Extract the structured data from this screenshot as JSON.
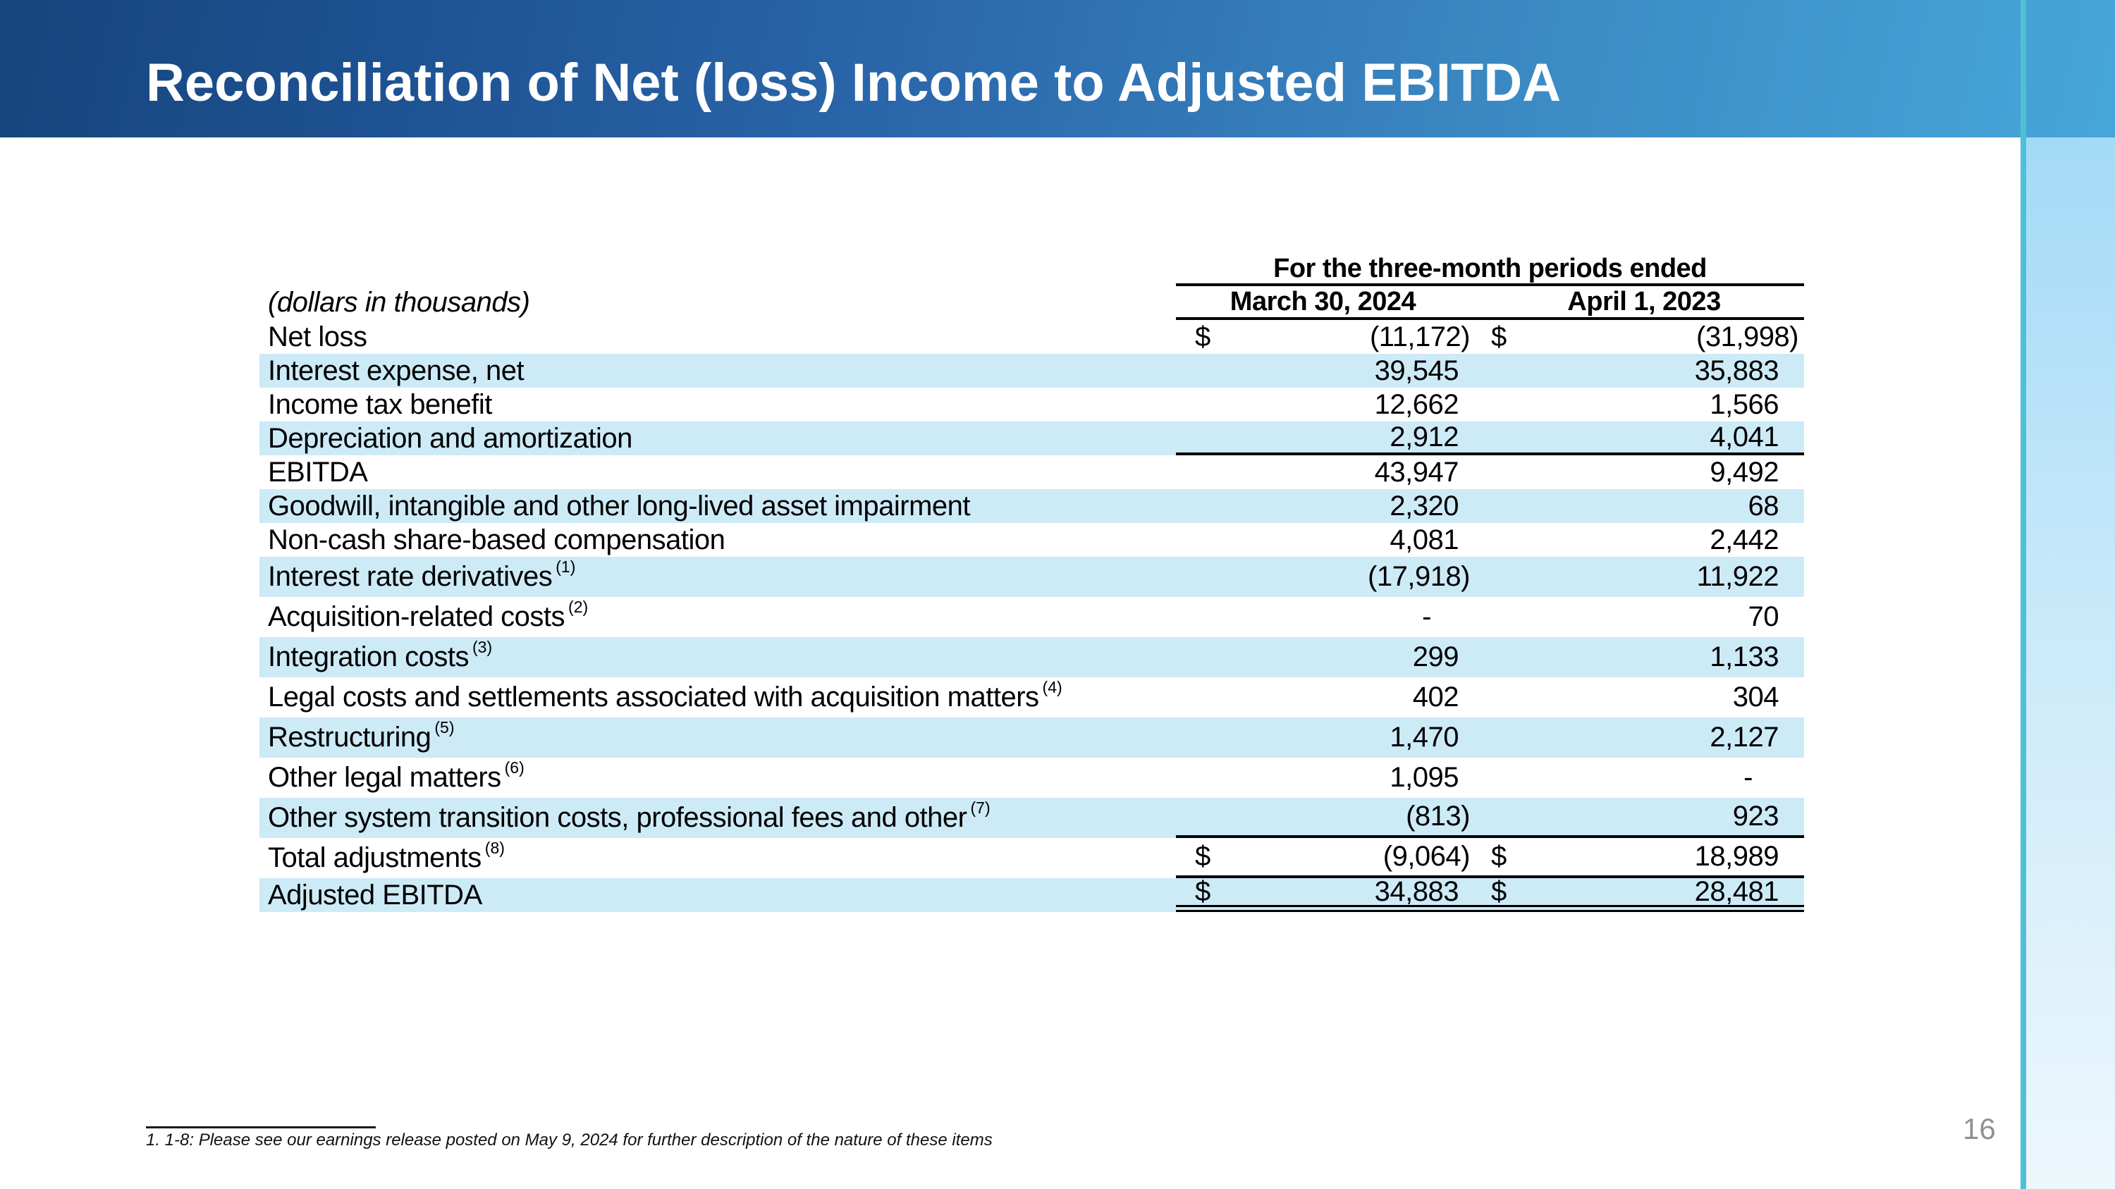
{
  "slide": {
    "title": "Reconciliation of Net (loss) Income to Adjusted EBITDA",
    "page_number": "16",
    "footnote": "1. 1-8: Please see our earnings release posted on May 9, 2024 for further description of the nature of these items"
  },
  "table": {
    "units_label": "(dollars in thousands)",
    "period_header": "For the three-month periods ended",
    "columns": [
      "March 30, 2024",
      "April 1, 2023"
    ],
    "rows": [
      {
        "label": "Net loss",
        "sup": "",
        "dollar": true,
        "values": [
          "(11,172)",
          "(31,998)"
        ],
        "shaded": false,
        "rule_below": false,
        "double_below": false
      },
      {
        "label": "Interest expense, net",
        "sup": "",
        "dollar": false,
        "values": [
          "39,545",
          "35,883"
        ],
        "shaded": true,
        "rule_below": false,
        "double_below": false
      },
      {
        "label": "Income tax benefit",
        "sup": "",
        "dollar": false,
        "values": [
          "12,662",
          "1,566"
        ],
        "shaded": false,
        "rule_below": false,
        "double_below": false
      },
      {
        "label": "Depreciation and amortization",
        "sup": "",
        "dollar": false,
        "values": [
          "2,912",
          "4,041"
        ],
        "shaded": true,
        "rule_below": true,
        "double_below": false
      },
      {
        "label": "EBITDA",
        "sup": "",
        "dollar": false,
        "values": [
          "43,947",
          "9,492"
        ],
        "shaded": false,
        "rule_below": false,
        "double_below": false
      },
      {
        "label": "Goodwill, intangible and other long-lived asset impairment",
        "sup": "",
        "dollar": false,
        "values": [
          "2,320",
          "68"
        ],
        "shaded": true,
        "rule_below": false,
        "double_below": false
      },
      {
        "label": "Non-cash share-based compensation",
        "sup": "",
        "dollar": false,
        "values": [
          "4,081",
          "2,442"
        ],
        "shaded": false,
        "rule_below": false,
        "double_below": false
      },
      {
        "label": "Interest rate derivatives",
        "sup": "(1)",
        "dollar": false,
        "values": [
          "(17,918)",
          "11,922"
        ],
        "shaded": true,
        "rule_below": false,
        "double_below": false
      },
      {
        "label": "Acquisition-related costs",
        "sup": "(2)",
        "dollar": false,
        "values": [
          "-",
          "70"
        ],
        "shaded": false,
        "rule_below": false,
        "double_below": false
      },
      {
        "label": "Integration costs",
        "sup": "(3)",
        "dollar": false,
        "values": [
          "299",
          "1,133"
        ],
        "shaded": true,
        "rule_below": false,
        "double_below": false
      },
      {
        "label": "Legal costs and settlements associated with acquisition matters",
        "sup": "(4)",
        "dollar": false,
        "values": [
          "402",
          "304"
        ],
        "shaded": false,
        "rule_below": false,
        "double_below": false
      },
      {
        "label": "Restructuring",
        "sup": "(5)",
        "dollar": false,
        "values": [
          "1,470",
          "2,127"
        ],
        "shaded": true,
        "rule_below": false,
        "double_below": false
      },
      {
        "label": "Other legal matters",
        "sup": "(6)",
        "dollar": false,
        "values": [
          "1,095",
          "-"
        ],
        "shaded": false,
        "rule_below": false,
        "double_below": false
      },
      {
        "label": "Other system transition costs, professional fees and other",
        "sup": "(7)",
        "dollar": false,
        "values": [
          "(813)",
          "923"
        ],
        "shaded": true,
        "rule_below": true,
        "double_below": false
      },
      {
        "label": "Total adjustments",
        "sup": "(8)",
        "dollar": true,
        "values": [
          "(9,064)",
          "18,989"
        ],
        "shaded": false,
        "rule_below": true,
        "double_below": false
      },
      {
        "label": "Adjusted EBITDA",
        "sup": "",
        "dollar": true,
        "values": [
          "34,883",
          "28,481"
        ],
        "shaded": true,
        "rule_below": false,
        "double_below": true
      }
    ]
  },
  "colors": {
    "banner_gradient_left": "#16457c",
    "banner_gradient_right": "#47a6da",
    "row_stripe": "#cdeaf7",
    "side_accent_teal": "#4ec0d6",
    "side_panel_top": "#a3daf6",
    "side_panel_bottom": "#edf7fc",
    "page_number_gray": "#8f9193",
    "title_text": "#ffffff"
  }
}
